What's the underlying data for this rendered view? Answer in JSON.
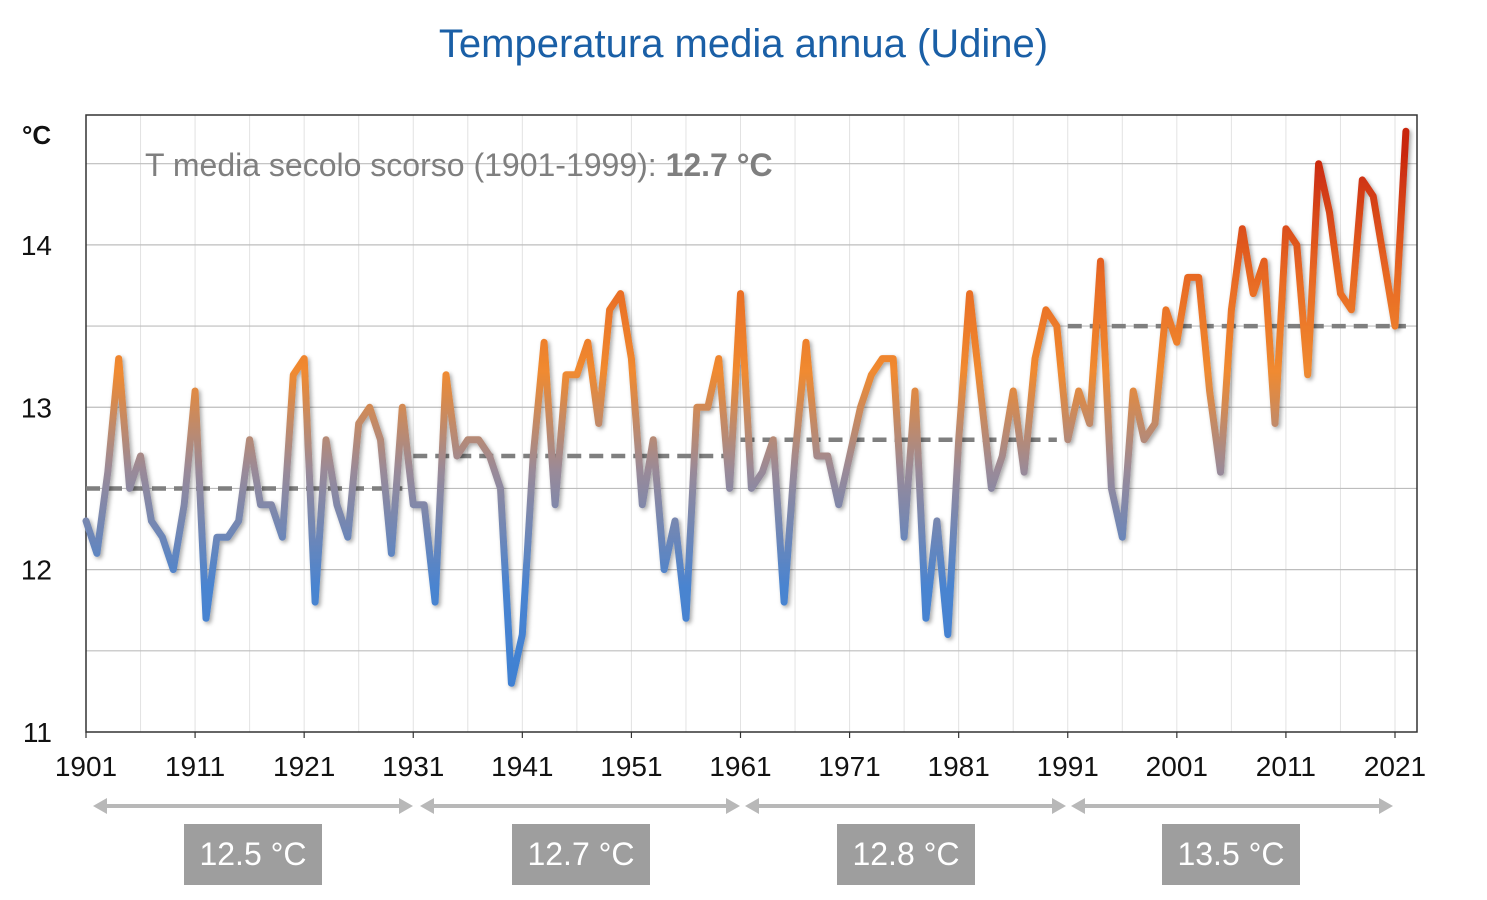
{
  "chart_data": {
    "type": "line",
    "title": "Temperatura media annua (Udine)",
    "ylabel": "°C",
    "xlabel": "",
    "annotation": {
      "label": "T media secolo scorso (1901-1999): ",
      "value": "12.7 °C"
    },
    "ylim": [
      11,
      14.8
    ],
    "xlim": [
      1901,
      2022
    ],
    "yticks": [
      "11",
      "12",
      "13",
      "14"
    ],
    "xticks": [
      "1901",
      "1911",
      "1921",
      "1931",
      "1941",
      "1951",
      "1961",
      "1971",
      "1981",
      "1991",
      "2001",
      "2011",
      "2021"
    ],
    "grid": true,
    "color_scale": {
      "low": "#3a7fd4",
      "mid": "#9a8a98",
      "high_mid": "#f08a30",
      "high": "#c8250e"
    },
    "series": [
      {
        "x": [
          1901,
          1902,
          1903,
          1904,
          1905,
          1906,
          1907,
          1908,
          1909,
          1910,
          1911,
          1912,
          1913,
          1914,
          1915,
          1916,
          1917,
          1918,
          1919,
          1920,
          1921,
          1922,
          1923,
          1924,
          1925,
          1926,
          1927,
          1928,
          1929,
          1930,
          1931,
          1932,
          1933,
          1934,
          1935,
          1936,
          1937,
          1938,
          1939,
          1940,
          1941,
          1942,
          1943,
          1944,
          1945,
          1946,
          1947,
          1948,
          1949,
          1950,
          1951,
          1952,
          1953,
          1954,
          1955,
          1956,
          1957,
          1958,
          1959,
          1960,
          1961,
          1962,
          1963,
          1964,
          1965,
          1966,
          1967,
          1968,
          1969,
          1970,
          1971,
          1972,
          1973,
          1974,
          1975,
          1976,
          1977,
          1978,
          1979,
          1980,
          1981,
          1982,
          1983,
          1984,
          1985,
          1986,
          1987,
          1988,
          1989,
          1990,
          1991,
          1992,
          1993,
          1994,
          1995,
          1996,
          1997,
          1998,
          1999,
          2000,
          2001,
          2002,
          2003,
          2004,
          2005,
          2006,
          2007,
          2008,
          2009,
          2010,
          2011,
          2012,
          2013,
          2014,
          2015,
          2016,
          2017,
          2018,
          2019,
          2020,
          2021,
          2022
        ],
        "values": [
          12.3,
          12.1,
          12.6,
          13.3,
          12.5,
          12.7,
          12.3,
          12.2,
          12.0,
          12.4,
          13.1,
          11.7,
          12.2,
          12.2,
          12.3,
          12.8,
          12.4,
          12.4,
          12.2,
          13.2,
          13.3,
          11.8,
          12.8,
          12.4,
          12.2,
          12.9,
          13.0,
          12.8,
          12.1,
          13.0,
          12.4,
          12.4,
          11.8,
          13.2,
          12.7,
          12.8,
          12.8,
          12.7,
          12.5,
          11.3,
          11.6,
          12.7,
          13.4,
          12.4,
          13.2,
          13.2,
          13.4,
          12.9,
          13.6,
          13.7,
          13.3,
          12.4,
          12.8,
          12.0,
          12.3,
          11.7,
          13.0,
          13.0,
          13.3,
          12.5,
          13.7,
          12.5,
          12.6,
          12.8,
          11.8,
          12.7,
          13.4,
          12.7,
          12.7,
          12.4,
          12.7,
          13.0,
          13.2,
          13.3,
          13.3,
          12.2,
          13.1,
          11.7,
          12.3,
          11.6,
          12.8,
          13.7,
          13.1,
          12.5,
          12.7,
          13.1,
          12.6,
          13.3,
          13.6,
          13.5,
          12.8,
          13.1,
          12.9,
          13.9,
          12.5,
          12.2,
          13.1,
          12.8,
          12.9,
          13.6,
          13.4,
          13.8,
          13.8,
          13.1,
          12.6,
          13.6,
          14.1,
          13.7,
          13.9,
          12.9,
          14.1,
          14.0,
          13.2,
          14.5,
          14.2,
          13.7,
          13.6,
          14.4,
          14.3,
          13.9,
          13.5,
          14.7
        ]
      }
    ],
    "period_means": [
      {
        "start": 1901,
        "end": 1930,
        "value": 12.5,
        "label": "12.5 °C"
      },
      {
        "start": 1931,
        "end": 1960,
        "value": 12.7,
        "label": "12.7 °C"
      },
      {
        "start": 1961,
        "end": 1990,
        "value": 12.8,
        "label": "12.8 °C"
      },
      {
        "start": 1991,
        "end": 2022,
        "value": 13.5,
        "label": "13.5 °C"
      }
    ]
  }
}
